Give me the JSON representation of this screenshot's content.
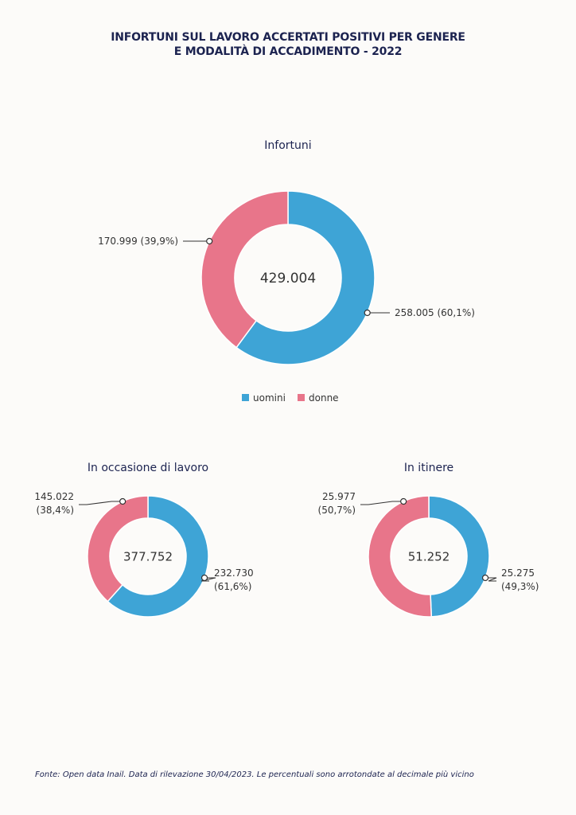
{
  "title": {
    "line1": "INFORTUNI SUL LAVORO ACCERTATI POSITIVI PER GENERE",
    "line2": "E MODALITÀ DI ACCADIMENTO - 2022"
  },
  "colors": {
    "uomini": "#3ea4d6",
    "donne": "#e8758a"
  },
  "chart_data": [
    {
      "type": "pie",
      "title": "Infortuni",
      "center_label": "429.004",
      "series": [
        {
          "name": "uomini",
          "value": 258005,
          "label_value": "258.005",
          "label_pct": "(60,1%)"
        },
        {
          "name": "donne",
          "value": 170999,
          "label_value": "170.999",
          "label_pct": "(39,9%)"
        }
      ],
      "legend": {
        "position": "bottom",
        "entries": [
          "uomini",
          "donne"
        ]
      }
    },
    {
      "type": "pie",
      "title": "In occasione di lavoro",
      "center_label": "377.752",
      "series": [
        {
          "name": "uomini",
          "value": 232730,
          "label_value": "232.730",
          "label_pct": "(61,6%)"
        },
        {
          "name": "donne",
          "value": 145022,
          "label_value": "145.022",
          "label_pct": "(38,4%)"
        }
      ]
    },
    {
      "type": "pie",
      "title": "In itinere",
      "center_label": "51.252",
      "series": [
        {
          "name": "uomini",
          "value": 25275,
          "label_value": "25.275",
          "label_pct": "(49,3%)"
        },
        {
          "name": "donne",
          "value": 25977,
          "label_value": "25.977",
          "label_pct": "(50,7%)"
        }
      ]
    }
  ],
  "source": "Fonte: Open data Inail. Data di rilevazione 30/04/2023. Le percentuali sono arrotondate al decimale più vicino"
}
